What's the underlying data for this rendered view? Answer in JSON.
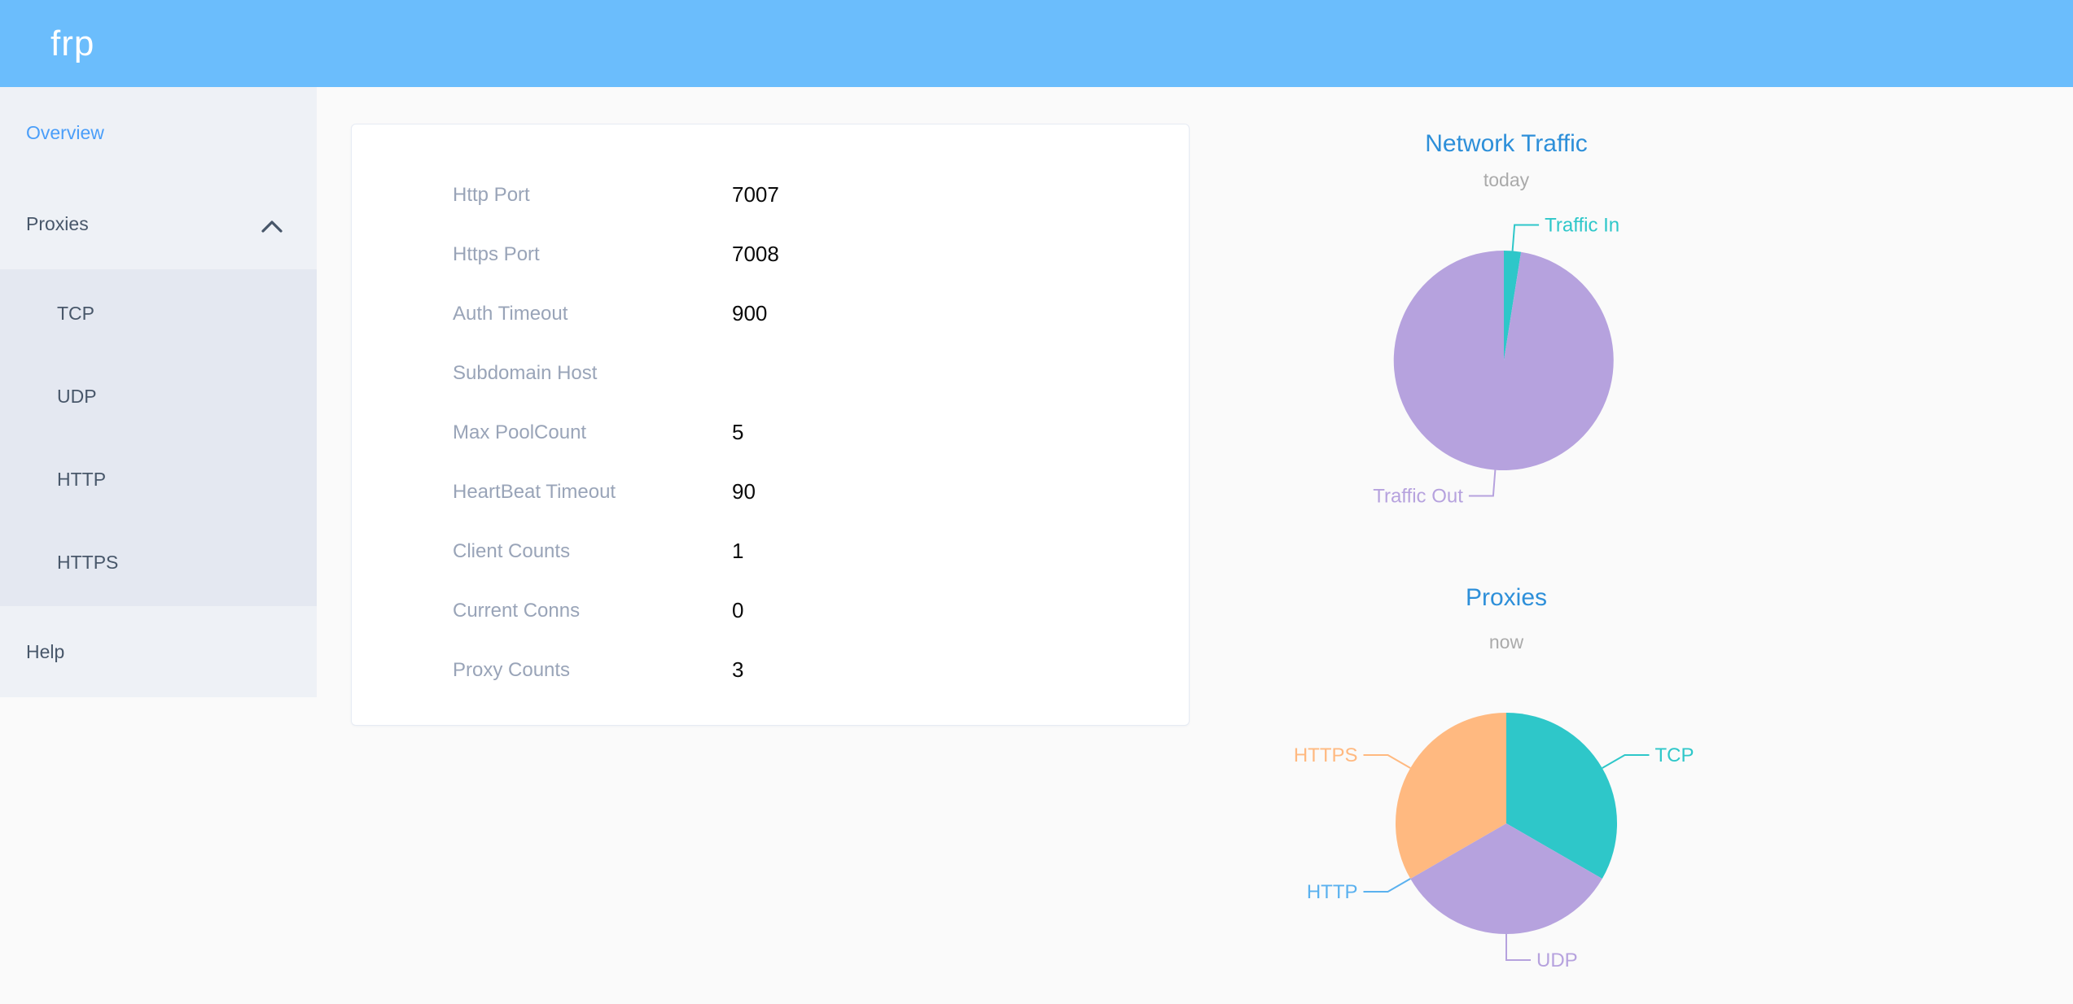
{
  "header": {
    "logo": "frp"
  },
  "sidebar": {
    "overview": "Overview",
    "proxies": "Proxies",
    "submenu": [
      "TCP",
      "UDP",
      "HTTP",
      "HTTPS"
    ],
    "help": "Help"
  },
  "server_info": {
    "rows": [
      {
        "label": "Http Port",
        "value": "7007"
      },
      {
        "label": "Https Port",
        "value": "7008"
      },
      {
        "label": "Auth Timeout",
        "value": "900"
      },
      {
        "label": "Subdomain Host",
        "value": ""
      },
      {
        "label": "Max PoolCount",
        "value": "5"
      },
      {
        "label": "HeartBeat Timeout",
        "value": "90"
      },
      {
        "label": "Client Counts",
        "value": "1"
      },
      {
        "label": "Current Conns",
        "value": "0"
      },
      {
        "label": "Proxy Counts",
        "value": "3"
      }
    ]
  },
  "chart_data": [
    {
      "type": "pie",
      "title": "Network Traffic",
      "subtitle": "today",
      "legend": "none",
      "labels": "outside",
      "series": [
        {
          "name": "Traffic In",
          "value": 2.5,
          "color": "#2ec7c9"
        },
        {
          "name": "Traffic Out",
          "value": 97.5,
          "color": "#b6a2de"
        }
      ],
      "note": "values are percentage shares estimated from slice angles"
    },
    {
      "type": "pie",
      "title": "Proxies",
      "subtitle": "now",
      "legend": "none",
      "labels": "outside",
      "series": [
        {
          "name": "TCP",
          "value": 1,
          "color": "#2ec7c9"
        },
        {
          "name": "UDP",
          "value": 1,
          "color": "#b6a2de"
        },
        {
          "name": "HTTP",
          "value": 0,
          "color": "#5ab1ef"
        },
        {
          "name": "HTTPS",
          "value": 1,
          "color": "#ffb980"
        }
      ]
    }
  ],
  "colors": {
    "header_bg": "#6bbdfc",
    "sidebar_bg": "#eef1f6",
    "submenu_bg": "#e4e8f1",
    "menu_text": "#48576a",
    "menu_active": "#4a9ef9",
    "page_bg": "#fafafa",
    "card_border": "#e6ebf4",
    "label_gray": "#99a4b8",
    "value_black": "#0a0a0a",
    "chart_title_blue": "#2d8fd9",
    "chart_subtitle_gray": "#aaaaaa",
    "pie_teal": "#2ec7c9",
    "pie_purple": "#b6a2de",
    "pie_blue": "#5ab1ef",
    "pie_orange": "#ffb980"
  }
}
